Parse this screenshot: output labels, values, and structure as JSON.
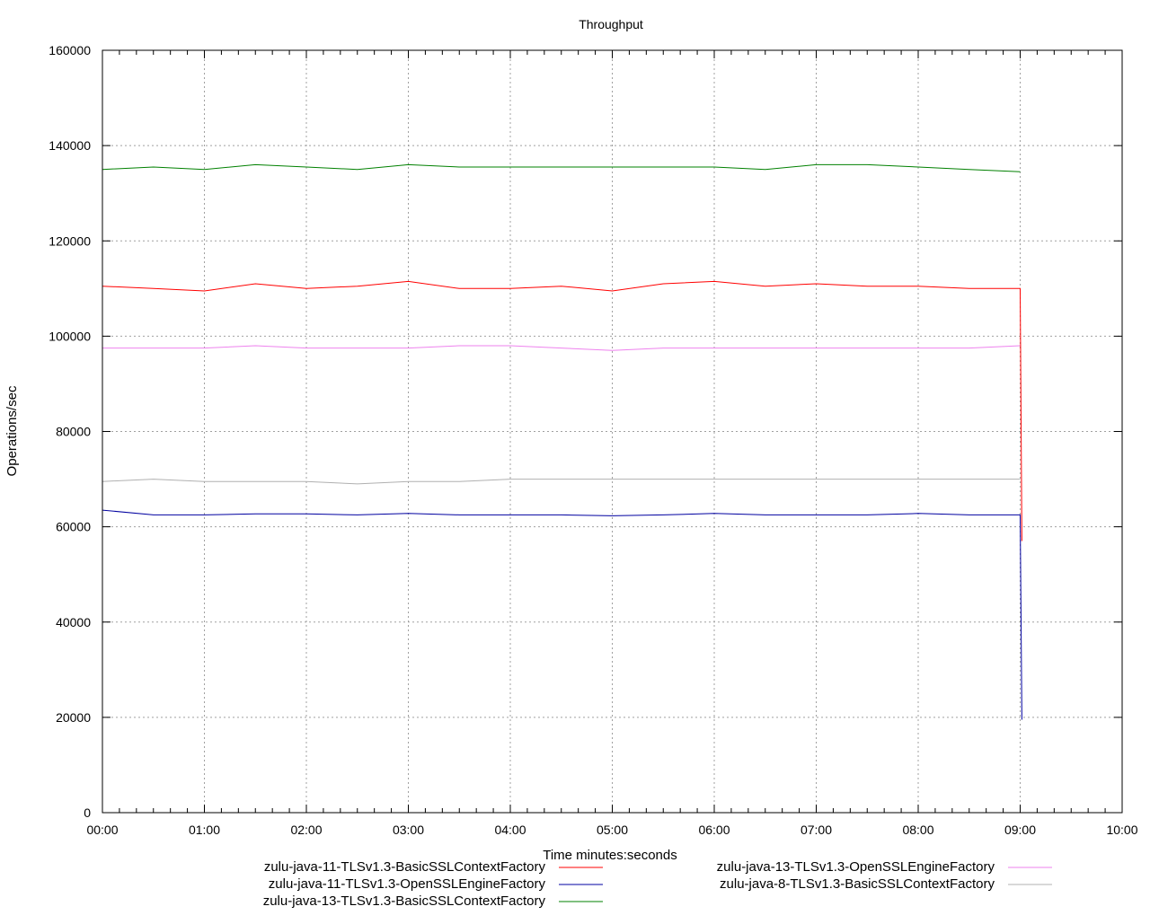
{
  "chart_data": {
    "type": "line",
    "title": "Throughput",
    "xlabel": "Time minutes:seconds",
    "ylabel": "Operations/sec",
    "xlim": [
      0,
      600
    ],
    "ylim": [
      0,
      160000
    ],
    "x_ticks": [
      {
        "value": 0,
        "label": "00:00"
      },
      {
        "value": 60,
        "label": "01:00"
      },
      {
        "value": 120,
        "label": "02:00"
      },
      {
        "value": 180,
        "label": "03:00"
      },
      {
        "value": 240,
        "label": "04:00"
      },
      {
        "value": 300,
        "label": "05:00"
      },
      {
        "value": 360,
        "label": "06:00"
      },
      {
        "value": 420,
        "label": "07:00"
      },
      {
        "value": 480,
        "label": "08:00"
      },
      {
        "value": 540,
        "label": "09:00"
      },
      {
        "value": 600,
        "label": "10:00"
      }
    ],
    "y_ticks": [
      {
        "value": 0,
        "label": "0"
      },
      {
        "value": 20000,
        "label": "20000"
      },
      {
        "value": 40000,
        "label": "40000"
      },
      {
        "value": 60000,
        "label": "60000"
      },
      {
        "value": 80000,
        "label": "80000"
      },
      {
        "value": 100000,
        "label": "100000"
      },
      {
        "value": 120000,
        "label": "120000"
      },
      {
        "value": 140000,
        "label": "140000"
      },
      {
        "value": 160000,
        "label": "160000"
      }
    ],
    "grid": true,
    "legend_position": "bottom",
    "series": [
      {
        "name": "zulu-java-11-TLSv1.3-BasicSSLContextFactory",
        "color": "#ff0000",
        "x": [
          0,
          30,
          60,
          90,
          120,
          150,
          180,
          210,
          240,
          270,
          300,
          330,
          360,
          390,
          420,
          450,
          480,
          510,
          540,
          541
        ],
        "y": [
          110500,
          110000,
          109500,
          111000,
          110000,
          110500,
          111500,
          110000,
          110000,
          110500,
          109500,
          111000,
          111500,
          110500,
          111000,
          110500,
          110500,
          110000,
          110000,
          57000
        ]
      },
      {
        "name": "zulu-java-11-TLSv1.3-OpenSSLEngineFactory",
        "color": "#0000a0",
        "x": [
          0,
          30,
          60,
          90,
          120,
          150,
          180,
          210,
          240,
          270,
          300,
          330,
          360,
          390,
          420,
          450,
          480,
          510,
          540,
          541
        ],
        "y": [
          63500,
          62500,
          62500,
          62700,
          62700,
          62500,
          62800,
          62500,
          62500,
          62500,
          62300,
          62500,
          62800,
          62500,
          62500,
          62500,
          62800,
          62500,
          62500,
          19500
        ]
      },
      {
        "name": "zulu-java-13-TLSv1.3-BasicSSLContextFactory",
        "color": "#008000",
        "x": [
          0,
          30,
          60,
          90,
          120,
          150,
          180,
          210,
          240,
          270,
          300,
          330,
          360,
          390,
          420,
          450,
          480,
          510,
          540
        ],
        "y": [
          135000,
          135500,
          135000,
          136000,
          135500,
          135000,
          136000,
          135500,
          135500,
          135500,
          135500,
          135500,
          135500,
          135000,
          136000,
          136000,
          135500,
          135000,
          134500
        ]
      },
      {
        "name": "zulu-java-13-TLSv1.3-OpenSSLEngineFactory",
        "color": "#ee82ee",
        "x": [
          0,
          30,
          60,
          90,
          120,
          150,
          180,
          210,
          240,
          270,
          300,
          330,
          360,
          390,
          420,
          450,
          480,
          510,
          540
        ],
        "y": [
          97500,
          97500,
          97500,
          98000,
          97500,
          97500,
          97500,
          98000,
          98000,
          97500,
          97000,
          97500,
          97500,
          97500,
          97500,
          97500,
          97500,
          97500,
          98000
        ]
      },
      {
        "name": "zulu-java-8-TLSv1.3-BasicSSLContextFactory",
        "color": "#b0b0b0",
        "x": [
          0,
          30,
          60,
          90,
          120,
          150,
          180,
          210,
          240,
          270,
          300,
          330,
          360,
          390,
          420,
          450,
          480,
          510,
          540
        ],
        "y": [
          69500,
          70000,
          69500,
          69500,
          69500,
          69000,
          69500,
          69500,
          70000,
          70000,
          70000,
          70000,
          70000,
          70000,
          70000,
          70000,
          70000,
          70000,
          70000
        ]
      }
    ]
  }
}
